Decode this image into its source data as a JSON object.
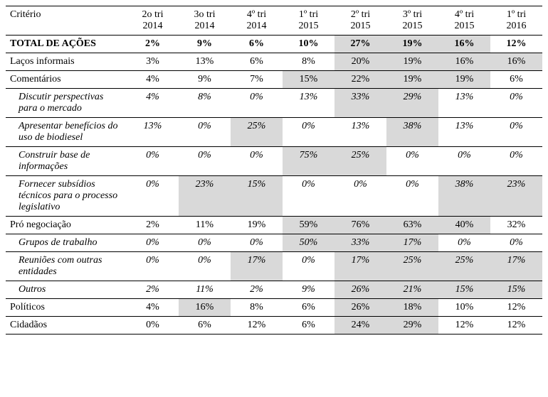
{
  "table": {
    "header": {
      "criterion_label": "Critério",
      "periods": [
        {
          "l1": "2o tri",
          "l2": "2014"
        },
        {
          "l1": "3o tri",
          "l2": "2014"
        },
        {
          "l1": "4º tri",
          "l2": "2014"
        },
        {
          "l1": "1º tri",
          "l2": "2015"
        },
        {
          "l1": "2º tri",
          "l2": "2015"
        },
        {
          "l1": "3º tri",
          "l2": "2015"
        },
        {
          "l1": "4º tri",
          "l2": "2015"
        },
        {
          "l1": "1º tri",
          "l2": "2016"
        }
      ]
    },
    "colors": {
      "highlight_bg": "#d9d9d9",
      "border": "#000000",
      "text": "#000000",
      "background": "#ffffff"
    },
    "font": {
      "family": "Times New Roman",
      "size_pt": 11
    },
    "rows": [
      {
        "label": "TOTAL DE AÇÕES",
        "style": "bold",
        "line_top": true,
        "line_bottom": true,
        "cells": [
          {
            "v": "2%"
          },
          {
            "v": "9%"
          },
          {
            "v": "6%"
          },
          {
            "v": "10%"
          },
          {
            "v": "27%",
            "hl": true
          },
          {
            "v": "19%",
            "hl": true
          },
          {
            "v": "16%",
            "hl": true
          },
          {
            "v": "12%"
          }
        ]
      },
      {
        "label": "Laços informais",
        "style": "plain",
        "line_bottom": true,
        "cells": [
          {
            "v": "3%"
          },
          {
            "v": "13%"
          },
          {
            "v": "6%"
          },
          {
            "v": "8%"
          },
          {
            "v": "20%",
            "hl": true
          },
          {
            "v": "19%",
            "hl": true
          },
          {
            "v": "16%",
            "hl": true
          },
          {
            "v": "16%",
            "hl": true
          }
        ]
      },
      {
        "label": "Comentários",
        "style": "plain",
        "line_bottom": true,
        "cells": [
          {
            "v": "4%"
          },
          {
            "v": "9%"
          },
          {
            "v": "7%"
          },
          {
            "v": "15%",
            "hl": true
          },
          {
            "v": "22%",
            "hl": true
          },
          {
            "v": "19%",
            "hl": true
          },
          {
            "v": "19%",
            "hl": true
          },
          {
            "v": "6%"
          }
        ]
      },
      {
        "label": "Discutir perspectivas para o mercado",
        "style": "ital",
        "line_bottom": true,
        "cells": [
          {
            "v": "4%"
          },
          {
            "v": "8%"
          },
          {
            "v": "0%"
          },
          {
            "v": "13%"
          },
          {
            "v": "33%",
            "hl": true
          },
          {
            "v": "29%",
            "hl": true
          },
          {
            "v": "13%"
          },
          {
            "v": "0%"
          }
        ]
      },
      {
        "label": "Apresentar benefícios do uso de biodiesel",
        "style": "ital",
        "line_bottom": true,
        "cells": [
          {
            "v": "13%"
          },
          {
            "v": "0%"
          },
          {
            "v": "25%",
            "hl": true
          },
          {
            "v": "0%"
          },
          {
            "v": "13%"
          },
          {
            "v": "38%",
            "hl": true
          },
          {
            "v": "13%"
          },
          {
            "v": "0%"
          }
        ]
      },
      {
        "label": "Construir base de informações",
        "style": "ital",
        "line_bottom": true,
        "cells": [
          {
            "v": "0%"
          },
          {
            "v": "0%"
          },
          {
            "v": "0%"
          },
          {
            "v": "75%",
            "hl": true
          },
          {
            "v": "25%",
            "hl": true
          },
          {
            "v": "0%"
          },
          {
            "v": "0%"
          },
          {
            "v": "0%"
          }
        ]
      },
      {
        "label": "Fornecer subsídios técnicos para o processo legislativo",
        "style": "ital",
        "line_bottom": true,
        "cells": [
          {
            "v": "0%"
          },
          {
            "v": "23%",
            "hl": true
          },
          {
            "v": "15%",
            "hl": true
          },
          {
            "v": "0%"
          },
          {
            "v": "0%"
          },
          {
            "v": "0%"
          },
          {
            "v": "38%",
            "hl": true
          },
          {
            "v": "23%",
            "hl": true
          }
        ]
      },
      {
        "label": "Pró negociação",
        "style": "plain",
        "line_bottom": true,
        "cells": [
          {
            "v": "2%"
          },
          {
            "v": "11%"
          },
          {
            "v": "19%"
          },
          {
            "v": "59%",
            "hl": true
          },
          {
            "v": "76%",
            "hl": true
          },
          {
            "v": "63%",
            "hl": true
          },
          {
            "v": "40%",
            "hl": true
          },
          {
            "v": "32%"
          }
        ]
      },
      {
        "label": "Grupos de trabalho",
        "style": "ital",
        "line_bottom": true,
        "cells": [
          {
            "v": "0%"
          },
          {
            "v": "0%"
          },
          {
            "v": "0%"
          },
          {
            "v": "50%",
            "hl": true
          },
          {
            "v": "33%",
            "hl": true
          },
          {
            "v": "17%",
            "hl": true
          },
          {
            "v": "0%"
          },
          {
            "v": "0%"
          }
        ]
      },
      {
        "label": "Reuniões com outras entidades",
        "style": "ital",
        "line_bottom": true,
        "cells": [
          {
            "v": "0%"
          },
          {
            "v": "0%"
          },
          {
            "v": "17%",
            "hl": true
          },
          {
            "v": "0%"
          },
          {
            "v": "17%",
            "hl": true
          },
          {
            "v": "25%",
            "hl": true
          },
          {
            "v": "25%",
            "hl": true
          },
          {
            "v": "17%",
            "hl": true
          }
        ]
      },
      {
        "label": "Outros",
        "style": "ital",
        "line_bottom": true,
        "cells": [
          {
            "v": "2%"
          },
          {
            "v": "11%"
          },
          {
            "v": "2%"
          },
          {
            "v": "9%"
          },
          {
            "v": "26%",
            "hl": true
          },
          {
            "v": "21%",
            "hl": true
          },
          {
            "v": "15%",
            "hl": true
          },
          {
            "v": "15%",
            "hl": true
          }
        ]
      },
      {
        "label": "Políticos",
        "style": "plain",
        "line_bottom": true,
        "cells": [
          {
            "v": "4%"
          },
          {
            "v": "16%",
            "hl": true
          },
          {
            "v": "8%"
          },
          {
            "v": "6%"
          },
          {
            "v": "26%",
            "hl": true
          },
          {
            "v": "18%",
            "hl": true
          },
          {
            "v": "10%"
          },
          {
            "v": "12%"
          }
        ]
      },
      {
        "label": "Cidadãos",
        "style": "plain",
        "line_bottom": true,
        "cells": [
          {
            "v": "0%"
          },
          {
            "v": "6%"
          },
          {
            "v": "12%"
          },
          {
            "v": "6%"
          },
          {
            "v": "24%",
            "hl": true
          },
          {
            "v": "29%",
            "hl": true
          },
          {
            "v": "12%"
          },
          {
            "v": "12%"
          }
        ]
      }
    ]
  }
}
